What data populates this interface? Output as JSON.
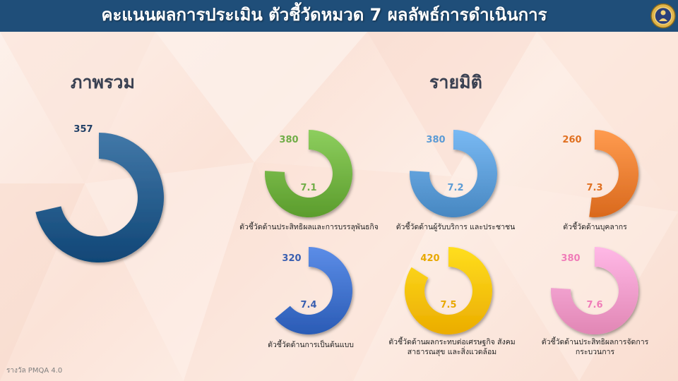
{
  "header": {
    "title": "คะแนนผลการประเมิน ตัวชี้วัดหมวด 7 ผลลัพธ์การดำเนินการ"
  },
  "sections": {
    "overall_title": "ภาพรวม",
    "dimension_title": "รายมิติ"
  },
  "footer": "รางวัล PMQA 4.0",
  "colors": {
    "header_bg": "#1f4e79",
    "overall": "#245a8a",
    "efficiency": "#6fb040",
    "service": "#5b9bd5",
    "personnel": "#ed7d31",
    "model": "#3e6fc9",
    "impact": "#ffc000",
    "process": "#f59ac8"
  },
  "chart_data": [
    {
      "type": "pie",
      "name": "overall",
      "label": "",
      "value": 357,
      "max": 500,
      "score_label": "",
      "color": "#245a8a"
    },
    {
      "type": "pie",
      "name": "efficiency",
      "label": "ตัวชี้วัดด้านประสิทธิผลและการบรรลุพันธกิจ",
      "value": 380,
      "max": 500,
      "score_label": "7.1",
      "color": "#6fb040",
      "label_color": "#70ad47"
    },
    {
      "type": "pie",
      "name": "service",
      "label": "ตัวชี้วัดด้านผู้รับบริการ และประชาชน",
      "value": 380,
      "max": 500,
      "score_label": "7.2",
      "color": "#5b9bd5",
      "label_color": "#5b9bd5"
    },
    {
      "type": "pie",
      "name": "personnel",
      "label": "ตัวชี้วัดด้านบุคลากร",
      "value": 260,
      "max": 500,
      "score_label": "7.3",
      "color": "#ed7d31",
      "label_color": "#e07020"
    },
    {
      "type": "pie",
      "name": "model",
      "label": "ตัวชี้วัดด้านการเป็นต้นแบบ",
      "value": 320,
      "max": 500,
      "score_label": "7.4",
      "color": "#3e6fc9",
      "label_color": "#3a5fb0"
    },
    {
      "type": "pie",
      "name": "impact",
      "label": "ตัวชี้วัดด้านผลกระทบต่อเศรษฐกิจ สังคม สาธารณสุข และสิ่งแวดล้อม",
      "value": 420,
      "max": 500,
      "score_label": "7.5",
      "color": "#ffc000",
      "label_color": "#e8a800"
    },
    {
      "type": "pie",
      "name": "process",
      "label": "ตัวชี้วัดด้านประสิทธิผลการจัดการกระบวนการ",
      "value": 380,
      "max": 500,
      "score_label": "7.6",
      "color": "#f59ac8",
      "label_color": "#f07cb8"
    }
  ]
}
